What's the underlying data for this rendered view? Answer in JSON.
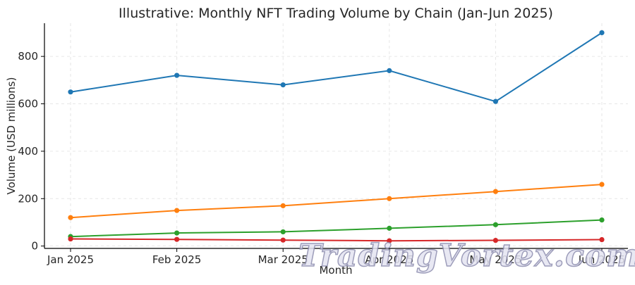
{
  "chart_data": {
    "type": "line",
    "title": "Illustrative: Monthly NFT Trading Volume by Chain (Jan-Jun 2025)",
    "xlabel": "Month",
    "ylabel": "Volume (USD millions)",
    "categories": [
      "Jan 2025",
      "Feb 2025",
      "Mar 2025",
      "Apr 2025",
      "May 2025",
      "Jun 2025"
    ],
    "ylim": [
      -10,
      940
    ],
    "yticks": [
      0,
      200,
      400,
      600,
      800
    ],
    "grid": true,
    "series": [
      {
        "color": "#1f77b4",
        "values": [
          650,
          720,
          680,
          740,
          610,
          900
        ]
      },
      {
        "color": "#ff7f0e",
        "values": [
          120,
          150,
          170,
          200,
          230,
          260
        ]
      },
      {
        "color": "#2ca02c",
        "values": [
          40,
          55,
          60,
          75,
          90,
          110
        ]
      },
      {
        "color": "#d62728",
        "values": [
          30,
          28,
          25,
          22,
          24,
          27
        ]
      }
    ]
  },
  "watermark": {
    "text": "TradingVortex.com"
  }
}
